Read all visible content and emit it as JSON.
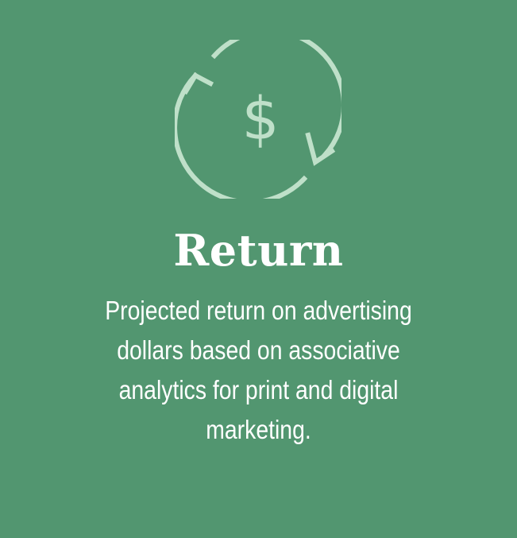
{
  "card": {
    "icon": "currency-cycle-icon",
    "icon_symbol": "$",
    "title": "Return",
    "description": "Projected return on advertising dollars based on associative analytics for print and digital marketing."
  },
  "colors": {
    "background": "#529670",
    "icon": "#bfe0c9",
    "text": "#ffffff"
  }
}
